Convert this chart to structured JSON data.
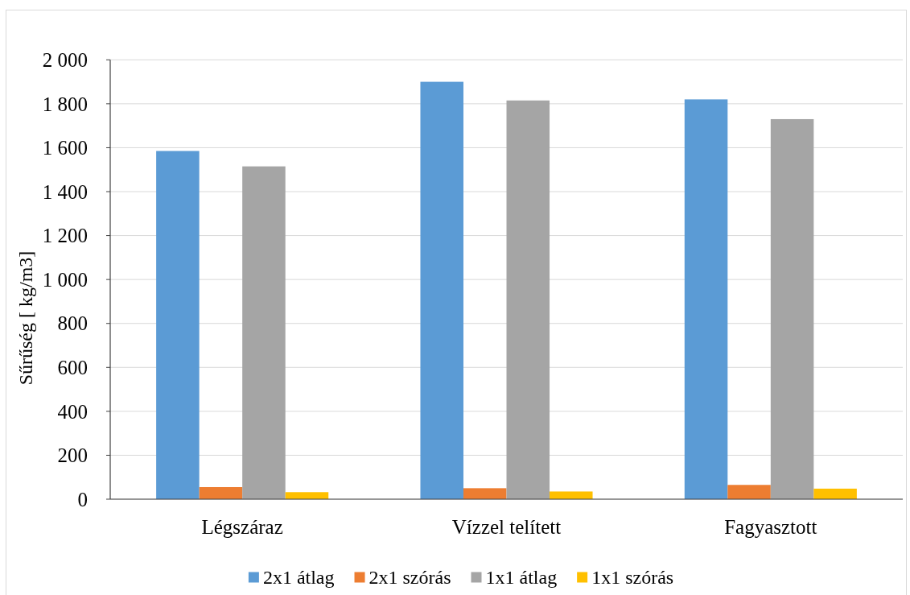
{
  "chart_data": {
    "type": "bar",
    "ylabel": "Sűrűség [ kg/m3]",
    "categories": [
      "Légszáraz",
      "Vízzel telített",
      "Fagyasztott"
    ],
    "series": [
      {
        "name": "2x1 átlag",
        "color": "#5b9bd5",
        "values": [
          1585,
          1900,
          1820
        ]
      },
      {
        "name": "2x1 szórás",
        "color": "#ed7d31",
        "values": [
          55,
          50,
          65
        ]
      },
      {
        "name": "1x1 átlag",
        "color": "#a5a5a5",
        "values": [
          1515,
          1815,
          1730
        ]
      },
      {
        "name": "1x1 szórás",
        "color": "#ffc000",
        "values": [
          32,
          35,
          48
        ]
      }
    ],
    "ylim": [
      0,
      2000
    ],
    "yticks": [
      0,
      200,
      400,
      600,
      800,
      {
        "value": 1000,
        "label": "1 000"
      },
      {
        "value": 1200,
        "label": "1 200"
      },
      {
        "value": 1400,
        "label": "1 400"
      },
      {
        "value": 1600,
        "label": "1 600"
      },
      {
        "value": 1800,
        "label": "1 800"
      },
      {
        "value": 2000,
        "label": "2 000"
      }
    ],
    "grid": "y",
    "legend": "bottom"
  }
}
